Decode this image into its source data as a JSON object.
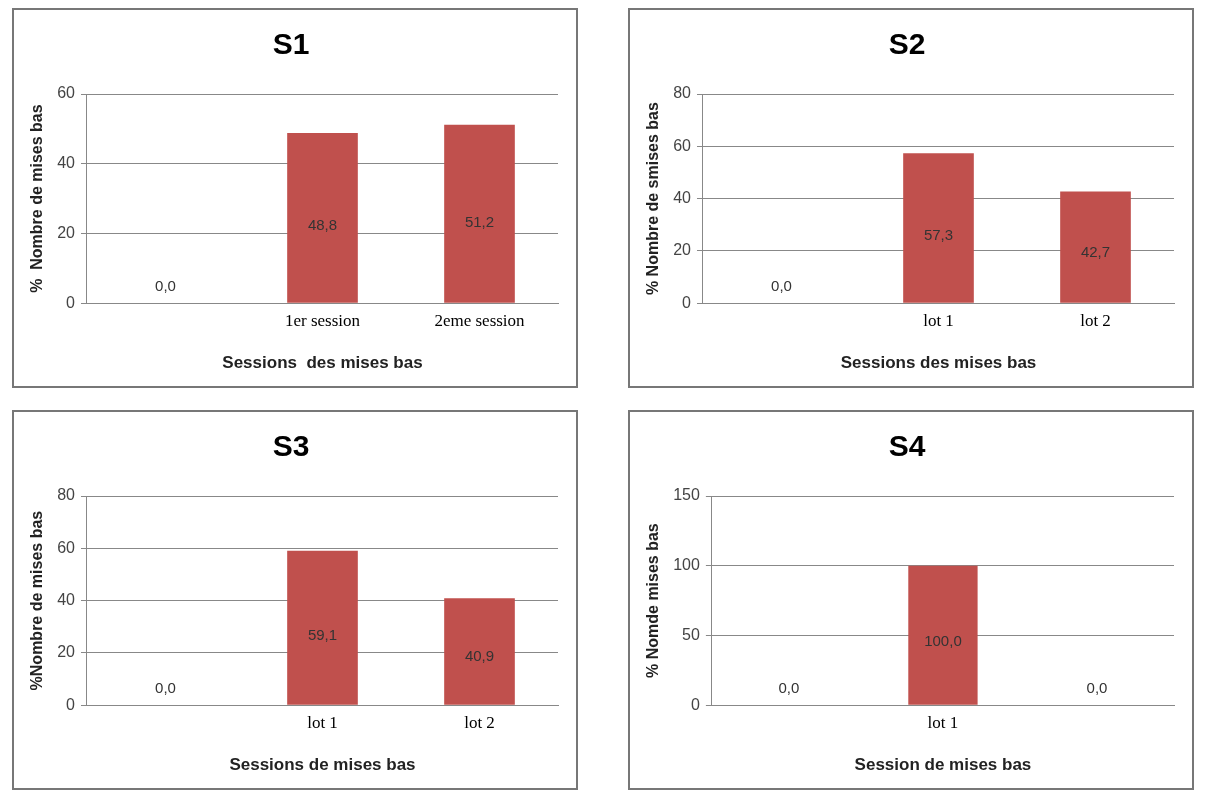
{
  "chart_data": [
    {
      "type": "bar",
      "title": "S1",
      "xlabel": "Sessions  des mises bas",
      "ylabel": "%  Nombre de mises bas",
      "categories": [
        null,
        "1er session",
        "2eme session"
      ],
      "values": [
        0,
        48.8,
        51.2
      ],
      "value_labels": [
        "0,0",
        "48,8",
        "51,2"
      ],
      "color": "#c0504d",
      "ylim": [
        0,
        60
      ],
      "yticks": [
        0,
        20,
        40,
        60
      ],
      "grid": "y"
    },
    {
      "type": "bar",
      "title": "S2",
      "xlabel": "Sessions des mises bas",
      "ylabel": "% Nombre de smises bas",
      "categories": [
        null,
        "lot 1",
        "lot 2"
      ],
      "values": [
        0,
        57.3,
        42.7
      ],
      "value_labels": [
        "0,0",
        "57,3",
        "42,7"
      ],
      "color": "#c0504d",
      "ylim": [
        0,
        80
      ],
      "yticks": [
        0,
        20,
        40,
        60,
        80
      ],
      "grid": "y"
    },
    {
      "type": "bar",
      "title": "S3",
      "xlabel": "Sessions de mises bas",
      "ylabel": "%Nombre de mises bas",
      "categories": [
        null,
        "lot 1",
        "lot 2"
      ],
      "values": [
        0,
        59.1,
        40.9
      ],
      "value_labels": [
        "0,0",
        "59,1",
        "40,9"
      ],
      "color": "#c0504d",
      "ylim": [
        0,
        80
      ],
      "yticks": [
        0,
        20,
        40,
        60,
        80
      ],
      "grid": "y"
    },
    {
      "type": "bar",
      "title": "S4",
      "xlabel": "Session de mises bas",
      "ylabel": "% Nomde mises bas",
      "categories": [
        null,
        "lot 1",
        null
      ],
      "values": [
        0,
        100,
        0
      ],
      "value_labels": [
        "0,0",
        "100,0",
        "0,0"
      ],
      "color": "#c0504d",
      "ylim": [
        0,
        150
      ],
      "yticks": [
        0,
        50,
        100,
        150
      ],
      "grid": "y"
    }
  ]
}
